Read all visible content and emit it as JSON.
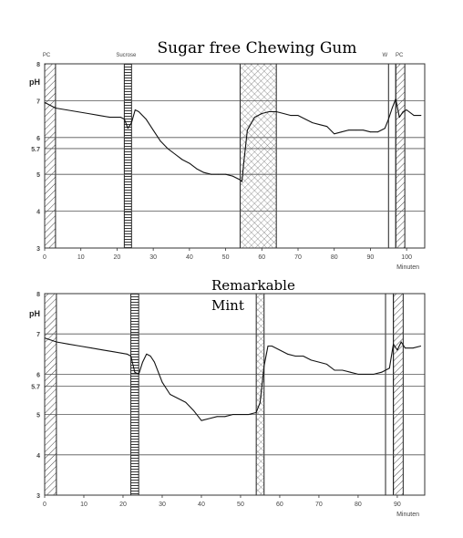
{
  "chart_data": [
    {
      "type": "line",
      "title": "Sugar free Chewing Gum",
      "ylabel": "pH",
      "xlabel": "Minuten",
      "xlim": [
        0,
        105
      ],
      "ylim": [
        3,
        8
      ],
      "x_ticks": [
        "0",
        "10",
        "20",
        "30",
        "40",
        "50",
        "60",
        "70",
        "80",
        "90",
        "100"
      ],
      "y_ticks": [
        "3",
        "4",
        "5",
        "5.7",
        "6",
        "7",
        "8"
      ],
      "grid": "horizontal",
      "event_labels": [
        {
          "text": "PC",
          "x": 0.5
        },
        {
          "text": "Sucrose",
          "x": 22.5
        },
        {
          "text": "W",
          "x": 94
        },
        {
          "text": "PC",
          "x": 98
        }
      ],
      "bands": [
        {
          "x0": 0,
          "x1": 3,
          "pattern": "diag"
        },
        {
          "x0": 22,
          "x1": 24,
          "pattern": "horiz"
        },
        {
          "x0": 54,
          "x1": 64,
          "pattern": "cross"
        },
        {
          "x0": 95,
          "x1": 97,
          "pattern": "none"
        },
        {
          "x0": 97,
          "x1": 99.5,
          "pattern": "diag"
        }
      ],
      "series": [
        {
          "x": [
            0,
            3,
            6,
            9,
            12,
            15,
            18,
            21,
            22,
            23,
            24,
            25,
            26,
            28,
            30,
            32,
            34,
            36,
            38,
            40,
            42,
            44,
            46,
            48,
            50,
            52,
            54,
            54.5,
            55,
            56,
            58,
            60,
            62,
            64,
            66,
            68,
            70,
            72,
            74,
            76,
            78,
            80,
            82,
            84,
            86,
            88,
            90,
            92,
            94,
            95,
            96,
            97,
            98,
            99,
            100,
            102,
            104
          ],
          "y": [
            6.95,
            6.8,
            6.75,
            6.7,
            6.65,
            6.6,
            6.55,
            6.55,
            6.5,
            6.25,
            6.4,
            6.75,
            6.7,
            6.5,
            6.2,
            5.9,
            5.7,
            5.55,
            5.4,
            5.3,
            5.15,
            5.05,
            5.0,
            5.0,
            5.0,
            4.95,
            4.85,
            4.8,
            5.3,
            6.2,
            6.55,
            6.65,
            6.7,
            6.7,
            6.65,
            6.6,
            6.6,
            6.5,
            6.4,
            6.35,
            6.3,
            6.1,
            6.15,
            6.2,
            6.2,
            6.2,
            6.15,
            6.15,
            6.25,
            6.5,
            6.8,
            7.05,
            6.55,
            6.7,
            6.75,
            6.6,
            6.6
          ]
        }
      ]
    },
    {
      "type": "line",
      "title": "Remarkable Mint",
      "ylabel": "pH",
      "xlabel": "Minuten",
      "xlim": [
        0,
        97
      ],
      "ylim": [
        3,
        8
      ],
      "x_ticks": [
        "0",
        "10",
        "20",
        "30",
        "40",
        "50",
        "60",
        "70",
        "80",
        "90"
      ],
      "y_ticks": [
        "3",
        "4",
        "5",
        "5.7",
        "6",
        "7",
        "8"
      ],
      "grid": "horizontal",
      "bands": [
        {
          "x0": 0,
          "x1": 3,
          "pattern": "diag"
        },
        {
          "x0": 22,
          "x1": 24,
          "pattern": "horiz"
        },
        {
          "x0": 54,
          "x1": 56,
          "pattern": "cross"
        },
        {
          "x0": 87,
          "x1": 89,
          "pattern": "none"
        },
        {
          "x0": 89,
          "x1": 91.5,
          "pattern": "diag"
        }
      ],
      "series": [
        {
          "x": [
            0,
            3,
            6,
            9,
            12,
            15,
            18,
            21,
            22,
            23,
            24,
            25,
            26,
            27,
            28,
            30,
            32,
            34,
            36,
            38,
            40,
            42,
            44,
            46,
            48,
            50,
            52,
            54,
            55,
            56,
            57,
            58,
            60,
            62,
            64,
            66,
            68,
            70,
            72,
            74,
            76,
            78,
            80,
            82,
            84,
            86,
            87,
            88,
            89,
            90,
            91,
            92,
            94,
            96
          ],
          "y": [
            6.9,
            6.8,
            6.75,
            6.7,
            6.65,
            6.6,
            6.55,
            6.5,
            6.45,
            6.05,
            6.0,
            6.3,
            6.5,
            6.45,
            6.3,
            5.8,
            5.5,
            5.4,
            5.3,
            5.1,
            4.85,
            4.9,
            4.95,
            4.95,
            5.0,
            5.0,
            5.0,
            5.05,
            5.3,
            6.2,
            6.7,
            6.7,
            6.6,
            6.5,
            6.45,
            6.45,
            6.35,
            6.3,
            6.25,
            6.1,
            6.1,
            6.05,
            6.0,
            6.0,
            6.0,
            6.05,
            6.1,
            6.15,
            6.75,
            6.6,
            6.8,
            6.65,
            6.65,
            6.7
          ]
        }
      ]
    }
  ]
}
